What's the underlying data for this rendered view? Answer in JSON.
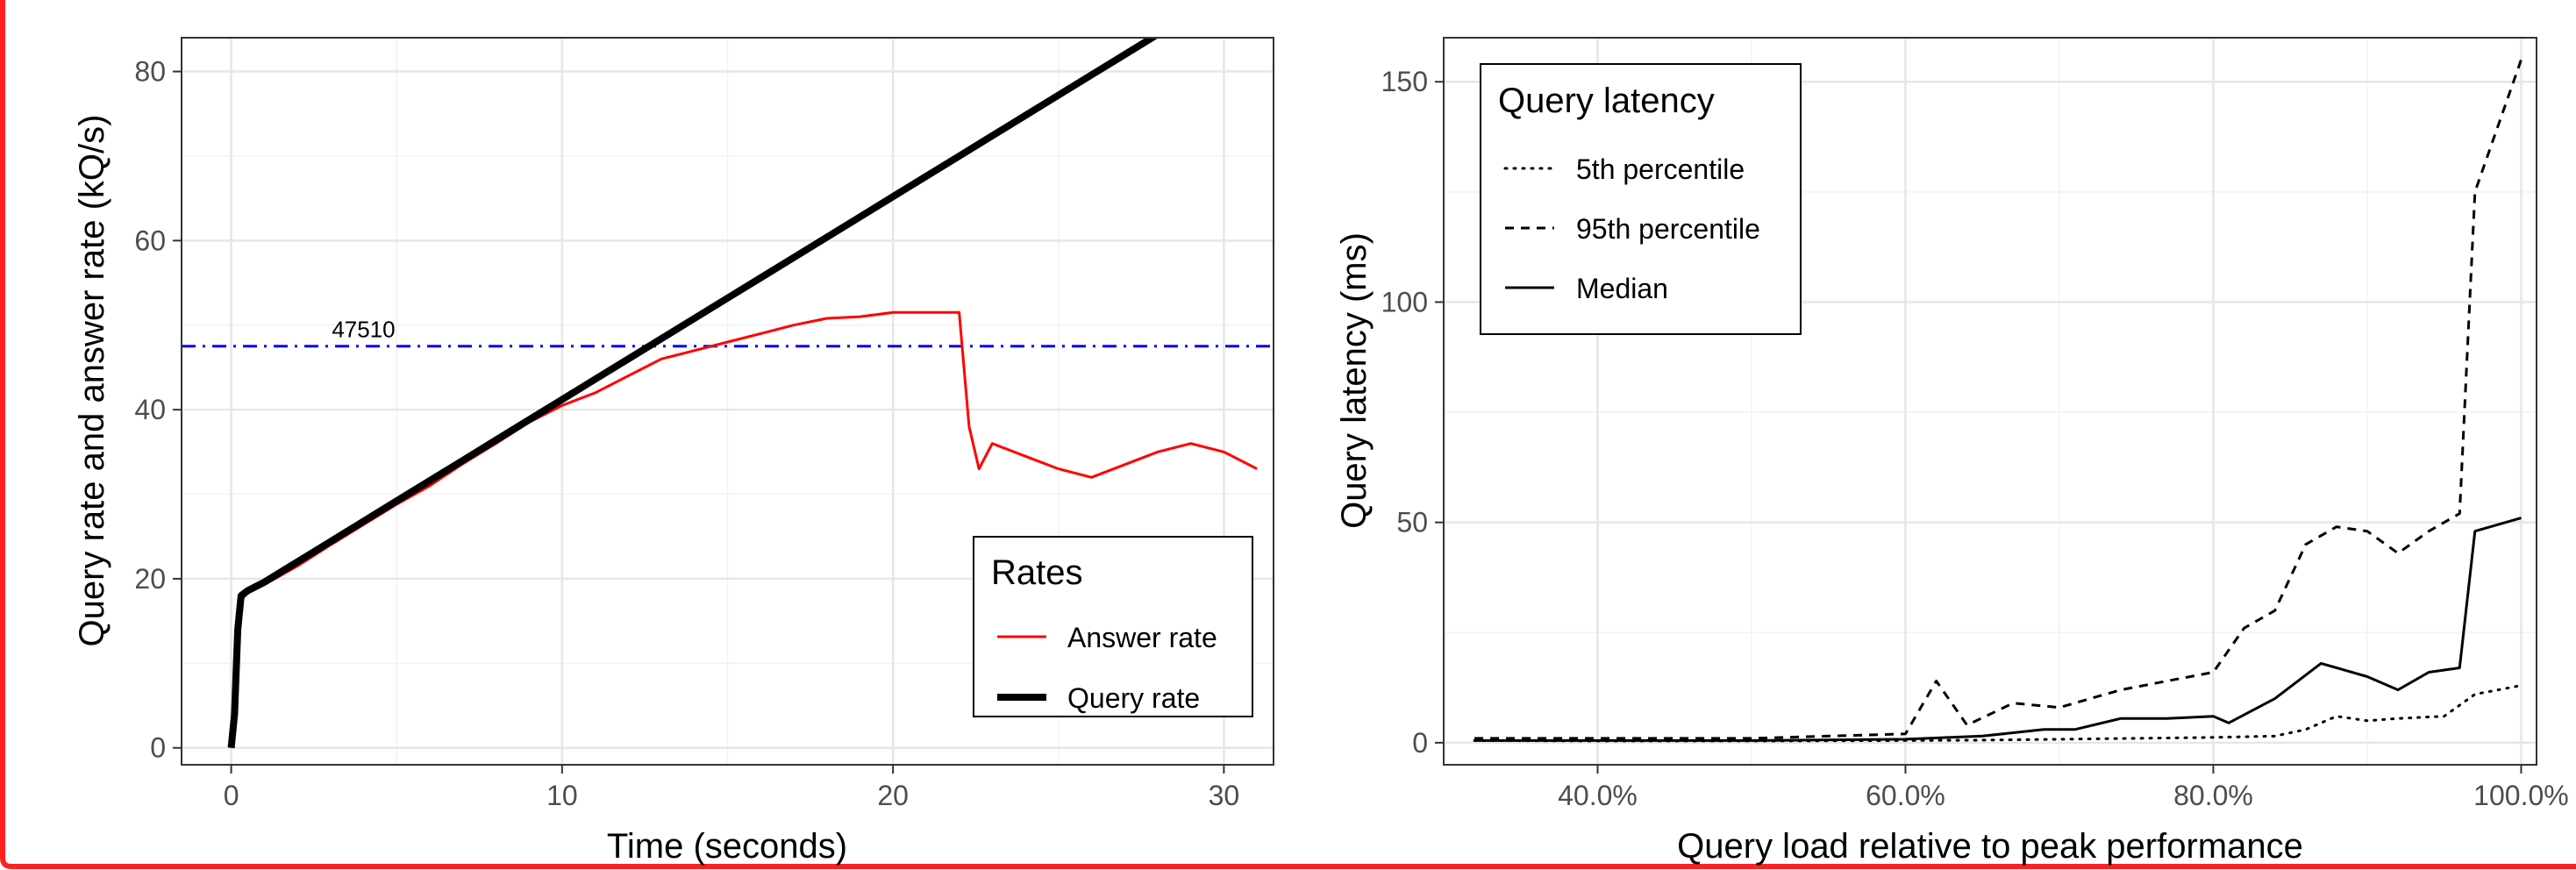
{
  "chart_data": [
    {
      "type": "line",
      "xlabel": "Time (seconds)",
      "ylabel": "Query rate and answer rate (kQ/s)",
      "xlim": [
        -1.5,
        31.5
      ],
      "ylim": [
        -2,
        84
      ],
      "x_ticks": [
        0,
        10,
        20,
        30
      ],
      "y_ticks": [
        0,
        20,
        40,
        60,
        80
      ],
      "grid": true,
      "legend": {
        "title": "Rates",
        "position": "bottom-right",
        "entries": [
          "Answer rate",
          "Query rate"
        ]
      },
      "reference_line": {
        "y": 47.51,
        "label": "47510",
        "color": "#0000ff",
        "style": "dash-dot"
      },
      "series": [
        {
          "name": "Query rate",
          "color": "#000000",
          "x": [
            0,
            0.1,
            0.2,
            0.3,
            0.5,
            1,
            2,
            3,
            4,
            5,
            6,
            7,
            8,
            9,
            10,
            11,
            12,
            13,
            14,
            15,
            16,
            17,
            18,
            19,
            20,
            21,
            22,
            23,
            24,
            25,
            26,
            27,
            28,
            29,
            30
          ],
          "y": [
            0,
            4,
            14,
            18,
            18.6,
            19.6,
            22,
            24.4,
            26.8,
            29.2,
            31.6,
            34,
            36.4,
            38.8,
            41.2,
            43.6,
            46,
            48.4,
            50.8,
            53.2,
            55.6,
            58,
            60.4,
            62.8,
            65.2,
            67.6,
            70,
            72.4,
            74.8,
            77.2,
            79.6,
            82,
            84.4,
            86.8,
            89.2
          ]
        },
        {
          "name": "Answer rate",
          "color": "#ff0000",
          "x": [
            0,
            0.1,
            0.2,
            0.3,
            0.5,
            1,
            2,
            3,
            4,
            5,
            6,
            7,
            8,
            9,
            10,
            11,
            12,
            13,
            14,
            15,
            16,
            17,
            18,
            19,
            20,
            21,
            22,
            22.3,
            22.6,
            23,
            24,
            25,
            26,
            27,
            28,
            29,
            30,
            31
          ],
          "y": [
            0,
            4,
            14,
            17.5,
            18.3,
            19.3,
            21.5,
            24,
            26.4,
            28.8,
            31,
            33.6,
            36,
            38.5,
            40.5,
            42,
            44,
            46,
            47,
            48,
            49,
            50,
            50.8,
            51,
            51.5,
            51.5,
            51.5,
            38,
            33,
            36,
            34.5,
            33,
            32,
            33.5,
            35,
            36,
            35,
            33
          ]
        }
      ]
    },
    {
      "type": "line",
      "xlabel": "Query load relative to peak performance",
      "ylabel": "Query latency (ms)",
      "xlim": [
        0.3,
        1.01
      ],
      "ylim": [
        -5,
        160
      ],
      "x_ticks": [
        "40.0%",
        "60.0%",
        "80.0%",
        "100.0%"
      ],
      "x_tick_values": [
        0.4,
        0.6,
        0.8,
        1.0
      ],
      "y_ticks": [
        0,
        50,
        100,
        150
      ],
      "grid": true,
      "legend": {
        "title": "Query latency",
        "position": "top-left",
        "entries": [
          "5th percentile",
          "95th percentile",
          "Median"
        ]
      },
      "series": [
        {
          "name": "5th percentile",
          "style": "dotted",
          "x": [
            0.32,
            0.4,
            0.5,
            0.6,
            0.65,
            0.7,
            0.75,
            0.8,
            0.84,
            0.86,
            0.88,
            0.9,
            0.92,
            0.95,
            0.97,
            1.0
          ],
          "y": [
            0.5,
            0.4,
            0.4,
            0.5,
            0.6,
            0.8,
            1,
            1.2,
            1.5,
            3,
            6,
            5,
            5.5,
            6,
            11,
            13
          ]
        },
        {
          "name": "95th percentile",
          "style": "dashed",
          "x": [
            0.32,
            0.4,
            0.5,
            0.55,
            0.6,
            0.62,
            0.64,
            0.67,
            0.7,
            0.72,
            0.74,
            0.77,
            0.8,
            0.82,
            0.84,
            0.86,
            0.88,
            0.9,
            0.92,
            0.94,
            0.96,
            0.97,
            1.0
          ],
          "y": [
            1,
            1,
            1,
            1.5,
            2,
            14,
            4,
            9,
            8,
            10,
            12,
            14,
            16,
            26,
            30,
            45,
            49,
            48,
            43,
            48,
            52,
            125,
            155
          ]
        },
        {
          "name": "Median",
          "style": "solid",
          "x": [
            0.32,
            0.4,
            0.5,
            0.6,
            0.65,
            0.69,
            0.71,
            0.74,
            0.77,
            0.8,
            0.81,
            0.84,
            0.87,
            0.9,
            0.92,
            0.94,
            0.96,
            0.97,
            1.0
          ],
          "y": [
            0.5,
            0.5,
            0.5,
            0.8,
            1.5,
            3,
            3,
            5.5,
            5.5,
            6,
            4.5,
            10,
            18,
            15,
            12,
            16,
            17,
            48,
            51
          ]
        }
      ]
    }
  ]
}
